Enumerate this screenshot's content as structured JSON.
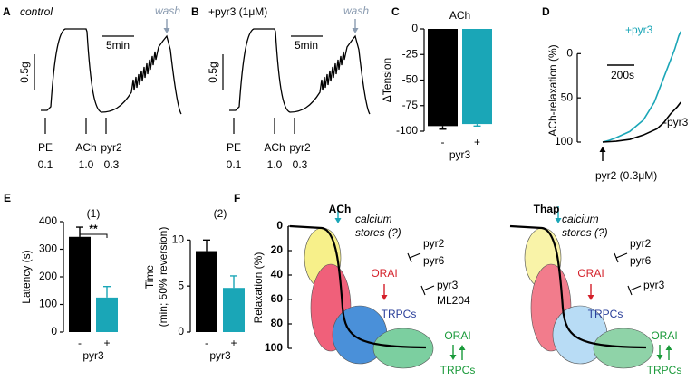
{
  "traces": [
    {
      "panel": "A",
      "condition": "control",
      "wash": "wash",
      "time_bar": "5min",
      "tension_bar": "0.5g",
      "stimuli": [
        {
          "drug": "PE",
          "dose": "0.1"
        },
        {
          "drug": "ACh",
          "dose": "1.0"
        },
        {
          "drug": "pyr2",
          "dose": "0.3"
        }
      ]
    },
    {
      "panel": "B",
      "condition": "+pyr3 (1μM)",
      "wash": "wash",
      "time_bar": "5min",
      "tension_bar": "0.5g",
      "stimuli": [
        {
          "drug": "PE",
          "dose": "0.1"
        },
        {
          "drug": "ACh",
          "dose": "1.0"
        },
        {
          "drug": "pyr2",
          "dose": "0.3"
        }
      ]
    }
  ],
  "chart_data": [
    {
      "panel": "C",
      "type": "bar",
      "title": "ACh",
      "ylabel": "ΔTension",
      "xlabel": "pyr3",
      "categories": [
        "-",
        "+"
      ],
      "values": [
        -95,
        -93
      ],
      "errors": [
        3,
        2
      ],
      "colors": [
        "#000000",
        "#1aa6b7"
      ],
      "ylim": [
        -100,
        0
      ],
      "yticks": [
        -100,
        -75,
        -50,
        -25,
        0
      ]
    },
    {
      "panel": "D",
      "type": "line",
      "ylabel": "ACh-relaxation (%)",
      "x_annotation": "pyr2 (0.3μM)",
      "scale_bar": {
        "value": 200,
        "label": "200s"
      },
      "xlim": [
        0,
        600
      ],
      "ylim": [
        100,
        -30
      ],
      "yticks": [
        0,
        50,
        100
      ],
      "series": [
        {
          "name": "+pyr3",
          "color": "#1aa6b7",
          "x": [
            0,
            50,
            100,
            200,
            300,
            380,
            430,
            480,
            530,
            560,
            575
          ],
          "values": [
            100,
            98,
            95,
            88,
            75,
            55,
            35,
            15,
            -5,
            -20,
            -25
          ]
        },
        {
          "name": "-pyr3",
          "color": "#000000",
          "x": [
            0,
            100,
            200,
            300,
            400,
            450,
            500,
            550,
            575
          ],
          "values": [
            100,
            99,
            97,
            92,
            85,
            78,
            68,
            60,
            55
          ]
        }
      ]
    },
    {
      "panel": "E",
      "type": "bar",
      "title": "(1)",
      "ylabel": "Latency (s)",
      "xlabel": "pyr3",
      "annotation": "**",
      "categories": [
        "-",
        "+"
      ],
      "values": [
        345,
        125
      ],
      "errors": [
        35,
        40
      ],
      "colors": [
        "#000000",
        "#1aa6b7"
      ],
      "ylim": [
        0,
        400
      ],
      "yticks": [
        0,
        100,
        200,
        300,
        400
      ]
    },
    {
      "type": "bar",
      "title": "(2)",
      "ylabel": [
        "Time",
        "(min; 50% reversion)"
      ],
      "xlabel": "pyr3",
      "categories": [
        "-",
        "+"
      ],
      "values": [
        8.8,
        4.8
      ],
      "errors": [
        1.2,
        1.3
      ],
      "colors": [
        "#000000",
        "#1aa6b7"
      ],
      "ylim": [
        0,
        12
      ],
      "yticks": [
        0,
        5,
        10
      ]
    }
  ],
  "diagram": {
    "panel": "F",
    "ylabel": "Relaxation (%)",
    "yticks": [
      0,
      20,
      40,
      60,
      80,
      100
    ],
    "schemes": [
      {
        "title": "ACh",
        "store": [
          "calcium",
          "stores (?)"
        ],
        "blockers_1": [
          "pyr2",
          "pyr6"
        ],
        "orai": "ORAI",
        "trpcs": "TRPCs",
        "blockers_2": [
          "pyr3",
          "ML204"
        ],
        "coupling": [
          "ORAI",
          "TRPCs"
        ]
      },
      {
        "title": "Thap",
        "store": [
          "calcium",
          "stores (?)"
        ],
        "blockers_1": [
          "pyr2",
          "pyr6"
        ],
        "orai": "ORAI",
        "trpcs": "TRPCs",
        "blockers_2": [
          "pyr3"
        ],
        "coupling": [
          "ORAI",
          "TRPCs"
        ]
      }
    ]
  }
}
